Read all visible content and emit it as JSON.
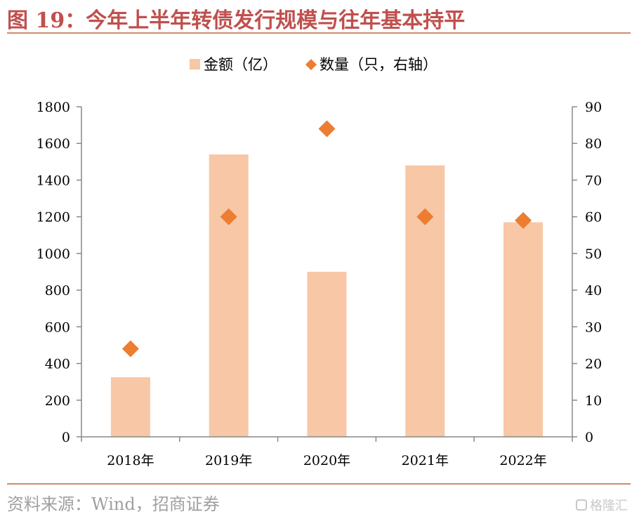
{
  "title": "图 19：今年上半年转债发行规模与往年基本持平",
  "source": "资料来源：Wind，招商证券",
  "watermark": "格隆汇",
  "colors": {
    "bar": "#f7c7a6",
    "marker": "#ed7d31",
    "title": "#c0504d",
    "rule": "#d08a6a"
  },
  "chart_data": {
    "type": "bar",
    "categories": [
      "2018年",
      "2019年",
      "2020年",
      "2021年",
      "2022年"
    ],
    "series": [
      {
        "name": "金额（亿）",
        "type": "bar",
        "axis": "left",
        "values": [
          325,
          1540,
          900,
          1480,
          1170
        ]
      },
      {
        "name": "数量（只，右轴）",
        "type": "scatter",
        "marker": "diamond",
        "axis": "right",
        "values": [
          24,
          60,
          84,
          60,
          59
        ]
      }
    ],
    "y_left": {
      "min": 0,
      "max": 1800,
      "ticks": [
        0,
        200,
        400,
        600,
        800,
        1000,
        1200,
        1400,
        1600,
        1800
      ]
    },
    "y_right": {
      "min": 0,
      "max": 90,
      "ticks": [
        0,
        10,
        20,
        30,
        40,
        50,
        60,
        70,
        80,
        90
      ]
    },
    "legend": "top-center",
    "grid": false
  }
}
